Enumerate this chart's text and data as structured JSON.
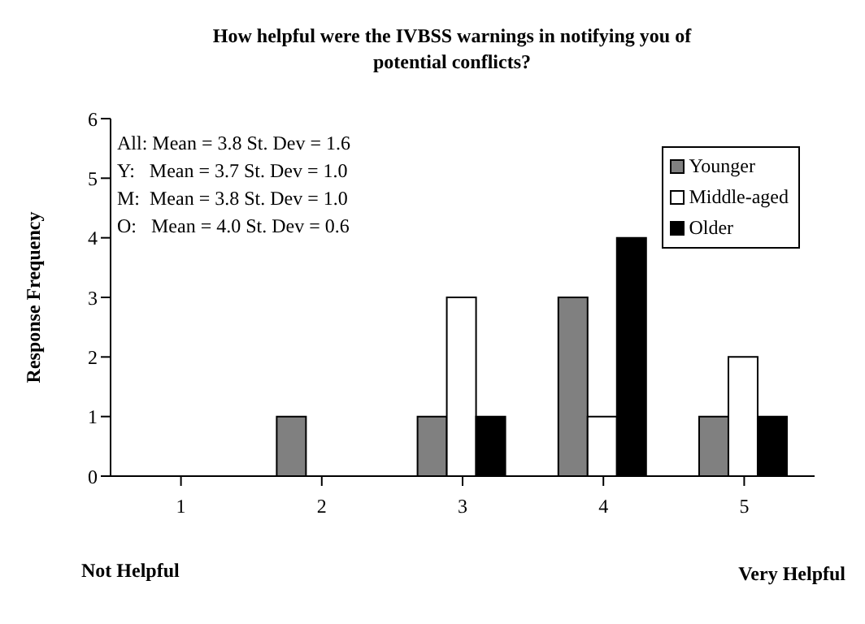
{
  "chart_data": {
    "type": "bar",
    "title": "How helpful were the IVBSS warnings in notifying  you of potential conflicts?",
    "ylabel": "Response Frequency",
    "categories": [
      "1",
      "2",
      "3",
      "4",
      "5"
    ],
    "series": [
      {
        "name": "Younger",
        "color": "#808080",
        "values": [
          0,
          1,
          1,
          3,
          1
        ]
      },
      {
        "name": "Middle-aged",
        "color": "#ffffff",
        "values": [
          0,
          0,
          3,
          1,
          2
        ]
      },
      {
        "name": "Older",
        "color": "#000000",
        "values": [
          0,
          0,
          1,
          4,
          1
        ]
      }
    ],
    "ylim": [
      0,
      6
    ],
    "yticks": [
      0,
      1,
      2,
      3,
      4,
      5,
      6
    ],
    "grid": false,
    "legend": "top right",
    "annotations": [
      "All: Mean = 3.8 St. Dev = 1.6",
      "Y:   Mean = 3.7 St. Dev = 1.0",
      "M:  Mean = 3.8 St. Dev = 1.0",
      "O:   Mean = 4.0 St. Dev = 0.6",
      "Not Helpful",
      "Very Helpful"
    ]
  }
}
